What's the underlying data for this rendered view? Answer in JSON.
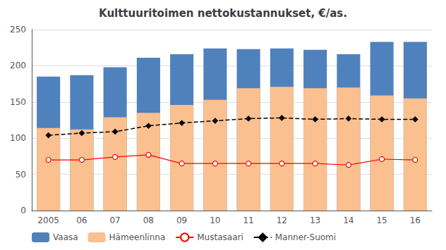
{
  "chart_data": {
    "type": "bar",
    "title": "Kulttuuritoimen nettokustannukset, €/as.",
    "categories": [
      "2005",
      "06",
      "07",
      "08",
      "09",
      "10",
      "11",
      "12",
      "13",
      "14",
      "15",
      "16"
    ],
    "series": [
      {
        "name": "Vaasa",
        "type": "bar",
        "color": "#4f81bd",
        "values": [
          185,
          187,
          198,
          211,
          216,
          224,
          223,
          224,
          222,
          216,
          233,
          233
        ]
      },
      {
        "name": "Hämeenlinna",
        "type": "bar",
        "color": "#FAC090",
        "values": [
          114,
          112,
          129,
          135,
          146,
          153,
          169,
          171,
          169,
          170,
          159,
          155
        ]
      },
      {
        "name": "Mustasaari",
        "type": "line",
        "color": "#FF0000",
        "marker": "circle",
        "line_style": "solid",
        "values": [
          70,
          70,
          74,
          77,
          65,
          65,
          65,
          65,
          65,
          63,
          71,
          70
        ]
      },
      {
        "name": "Manner-Suomi",
        "type": "line",
        "color": "#000000",
        "marker": "diamond",
        "line_style": "dashed",
        "values": [
          104,
          107,
          109,
          117,
          121,
          124,
          127,
          128,
          126,
          127,
          126,
          126
        ]
      }
    ],
    "ylim": [
      0,
      250
    ],
    "yticks": [
      0,
      50,
      100,
      150,
      200,
      250
    ],
    "grid": true,
    "legend": "lower left"
  }
}
